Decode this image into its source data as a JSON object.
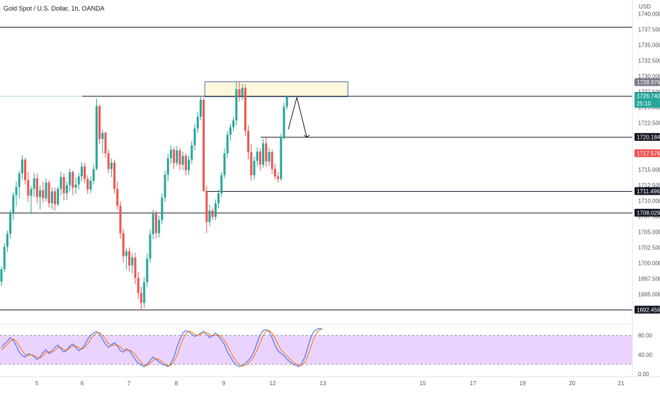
{
  "header": {
    "title": "Gold Spot / U.S. Dollar, 1h, OANDA",
    "currency": "USD"
  },
  "chart_data": {
    "type": "candlestick",
    "title": "Gold Spot / U.S. Dollar, 1h, OANDA",
    "price_axis": {
      "unit": "USD",
      "range": [
        1690.5,
        1742.0
      ],
      "ticks": [
        "1740.000",
        "1737.500",
        "1735.000",
        "1732.500",
        "1730.000",
        "1727.500",
        "1725.000",
        "1722.500",
        "1720.000",
        "1717.500",
        "1715.000",
        "1712.500",
        "1710.000",
        "1707.500",
        "1705.000",
        "1702.500",
        "1700.000",
        "1697.500",
        "1695.000",
        "1692.500"
      ]
    },
    "time_axis": {
      "ticks": [
        "5",
        "6",
        "7",
        "8",
        "9",
        "12",
        "13",
        "15",
        "17",
        "19",
        "20",
        "21"
      ]
    },
    "horizontal_levels": [
      "1737.867",
      "1726.766",
      "1720.184",
      "1711.496",
      "1708.029",
      "1692.456"
    ],
    "price_badges": [
      {
        "label": "1728.976",
        "color": "#787b86"
      },
      {
        "label": "1726.766",
        "color": "#131722"
      },
      {
        "label": "1726.740",
        "sub": "25:10",
        "color": "#26a69a"
      },
      {
        "label": "1720.184",
        "color": "#131722"
      },
      {
        "label": "1717.576",
        "color": "#ef5350"
      },
      {
        "label": "1711.496",
        "color": "#131722"
      },
      {
        "label": "1708.029",
        "color": "#131722"
      },
      {
        "label": "1692.456",
        "color": "#131722"
      }
    ],
    "supply_zone": {
      "from_time": "8.6",
      "to_time": "13.5",
      "low": 1726.7,
      "high": 1729.1,
      "color": "#fff8dc",
      "border": "#4a6fa5"
    },
    "projection": {
      "points": [
        {
          "t": 12.4,
          "p": 1721.5
        },
        {
          "t": 12.55,
          "p": 1726.6
        },
        {
          "t": 12.8,
          "p": 1720.2
        }
      ]
    },
    "candles_ohlc": [
      [
        1697,
        1699.5,
        1696.3,
        1699
      ],
      [
        1699,
        1703.2,
        1698.5,
        1702.6
      ],
      [
        1702.6,
        1705.2,
        1701.8,
        1704.7
      ],
      [
        1704.7,
        1708.5,
        1703.9,
        1707.9
      ],
      [
        1707.9,
        1711.4,
        1706.9,
        1710.9
      ],
      [
        1710.9,
        1713.1,
        1709.1,
        1712.2
      ],
      [
        1712.2,
        1714.8,
        1710.4,
        1714.4
      ],
      [
        1714.4,
        1717.3,
        1713.4,
        1716.6
      ],
      [
        1716.6,
        1716.9,
        1712.6,
        1713.3
      ],
      [
        1713.3,
        1714.6,
        1709.8,
        1710.8
      ],
      [
        1710.8,
        1712.4,
        1708.1,
        1711.9
      ],
      [
        1711.9,
        1714.4,
        1710.6,
        1713.6
      ],
      [
        1713.6,
        1714.4,
        1709.6,
        1710.6
      ],
      [
        1710.6,
        1712.5,
        1708.6,
        1711.7
      ],
      [
        1711.7,
        1713.1,
        1709.7,
        1710.4
      ],
      [
        1710.4,
        1713.6,
        1709.9,
        1712.9
      ],
      [
        1712.9,
        1713.3,
        1708.9,
        1709.6
      ],
      [
        1709.6,
        1712.2,
        1708.6,
        1711.5
      ],
      [
        1711.5,
        1712.1,
        1708.4,
        1709.4
      ],
      [
        1709.4,
        1712.3,
        1709.1,
        1711.9
      ],
      [
        1711.9,
        1714.7,
        1710.9,
        1713.8
      ],
      [
        1713.8,
        1714.4,
        1710.1,
        1711.2
      ],
      [
        1711.2,
        1713.1,
        1710.1,
        1712.5
      ],
      [
        1712.5,
        1715.1,
        1711.5,
        1714.6
      ],
      [
        1714.6,
        1714.9,
        1710.9,
        1712.1
      ],
      [
        1712.1,
        1713.7,
        1711.1,
        1712.6
      ],
      [
        1712.6,
        1714.5,
        1711.8,
        1713.9
      ],
      [
        1713.9,
        1716.2,
        1713.1,
        1715.5
      ],
      [
        1715.5,
        1716.1,
        1712.8,
        1713.5
      ],
      [
        1713.5,
        1714.1,
        1711.1,
        1711.8
      ],
      [
        1711.8,
        1713.9,
        1711.2,
        1713.2
      ],
      [
        1713.2,
        1715.9,
        1712.6,
        1715.1
      ],
      [
        1715.1,
        1726.4,
        1714.9,
        1725.2
      ],
      [
        1725.2,
        1725.4,
        1719.1,
        1719.9
      ],
      [
        1719.9,
        1721.4,
        1717.6,
        1720.9
      ],
      [
        1720.9,
        1721.1,
        1716.9,
        1717.6
      ],
      [
        1717.6,
        1718.3,
        1714.4,
        1715.1
      ],
      [
        1715.1,
        1716.8,
        1713.8,
        1716.1
      ],
      [
        1716.1,
        1716.6,
        1711.2,
        1711.9
      ],
      [
        1711.9,
        1713.1,
        1708.5,
        1709.2
      ],
      [
        1709.2,
        1709.9,
        1703.9,
        1704.8
      ],
      [
        1704.8,
        1705.5,
        1700.1,
        1701.1
      ],
      [
        1701.1,
        1702.4,
        1698.9,
        1701.9
      ],
      [
        1701.9,
        1702.5,
        1698.6,
        1699.6
      ],
      [
        1699.6,
        1701.6,
        1698.3,
        1700.9
      ],
      [
        1700.9,
        1701.7,
        1696.6,
        1697.6
      ],
      [
        1697.6,
        1698.6,
        1694.2,
        1695.2
      ],
      [
        1695.2,
        1696.2,
        1692.4,
        1693.6
      ],
      [
        1693.6,
        1697.8,
        1692.8,
        1696.9
      ],
      [
        1696.9,
        1701.6,
        1696.1,
        1700.7
      ],
      [
        1700.7,
        1705.4,
        1700.1,
        1704.6
      ],
      [
        1704.6,
        1708.6,
        1703.8,
        1707.9
      ],
      [
        1707.9,
        1708.4,
        1703.9,
        1704.8
      ],
      [
        1704.8,
        1707.6,
        1704.1,
        1706.9
      ],
      [
        1706.9,
        1711.2,
        1706.2,
        1710.5
      ],
      [
        1710.5,
        1714.8,
        1709.8,
        1714.2
      ],
      [
        1714.2,
        1717.6,
        1713.1,
        1716.8
      ],
      [
        1716.8,
        1718.9,
        1715.9,
        1718.2
      ],
      [
        1718.2,
        1718.6,
        1715.1,
        1716.1
      ],
      [
        1716.1,
        1718.8,
        1715.6,
        1718.1
      ],
      [
        1718.1,
        1718.5,
        1714.9,
        1715.8
      ],
      [
        1715.8,
        1717.9,
        1714.9,
        1717.2
      ],
      [
        1717.2,
        1717.6,
        1714.1,
        1714.9
      ],
      [
        1714.9,
        1717.3,
        1714.1,
        1716.6
      ],
      [
        1716.6,
        1719.6,
        1715.9,
        1718.9
      ],
      [
        1718.9,
        1722.3,
        1718.1,
        1721.6
      ],
      [
        1721.6,
        1724.3,
        1720.9,
        1723.5
      ],
      [
        1723.5,
        1726.8,
        1722.9,
        1726.2
      ],
      [
        1726.2,
        1726.5,
        1714.6,
        1711.5
      ],
      [
        1711.5,
        1712.4,
        1704.8,
        1706.6
      ],
      [
        1706.6,
        1709.4,
        1705.9,
        1708.4
      ],
      [
        1708.4,
        1708.9,
        1706.9,
        1707.4
      ],
      [
        1707.4,
        1710.2,
        1706.9,
        1709.6
      ],
      [
        1709.6,
        1711.8,
        1708.8,
        1711.2
      ],
      [
        1711.2,
        1714.6,
        1710.6,
        1714.1
      ],
      [
        1714.1,
        1718.4,
        1713.6,
        1717.6
      ],
      [
        1717.6,
        1721.2,
        1716.9,
        1720.6
      ],
      [
        1720.6,
        1722.3,
        1719.6,
        1721.8
      ],
      [
        1721.8,
        1723.5,
        1721.1,
        1722.9
      ],
      [
        1722.9,
        1729.1,
        1722.1,
        1727.9
      ],
      [
        1727.9,
        1729.2,
        1725.9,
        1726.8
      ],
      [
        1726.8,
        1728.8,
        1726.1,
        1728.1
      ],
      [
        1728.1,
        1728.7,
        1720.4,
        1721.2
      ],
      [
        1721.2,
        1722.1,
        1716.6,
        1717.8
      ],
      [
        1717.8,
        1719.1,
        1713.2,
        1714.1
      ],
      [
        1714.1,
        1717.1,
        1713.4,
        1716.4
      ],
      [
        1716.4,
        1718.6,
        1715.6,
        1717.9
      ],
      [
        1717.9,
        1718.4,
        1714.9,
        1715.8
      ],
      [
        1715.8,
        1719.9,
        1715.3,
        1719.2
      ],
      [
        1719.2,
        1720.1,
        1715.4,
        1716.3
      ],
      [
        1716.3,
        1718.5,
        1715.6,
        1717.8
      ],
      [
        1717.8,
        1718.2,
        1714.3,
        1715.1
      ],
      [
        1715.1,
        1715.9,
        1713.4,
        1713.9
      ],
      [
        1713.9,
        1714.6,
        1712.9,
        1713.5
      ],
      [
        1713.5,
        1720.8,
        1713.2,
        1720.2
      ],
      [
        1720.2,
        1725.8,
        1719.8,
        1725.1
      ],
      [
        1725.1,
        1726.9,
        1724.6,
        1726.7
      ]
    ],
    "stochastic_rsi": {
      "y_axis_ticks": [
        "80.00",
        "40.00",
        "0.00"
      ],
      "band": [
        20,
        80
      ],
      "k_line": [
        55,
        62,
        68,
        75,
        70,
        58,
        45,
        38,
        35,
        42,
        40,
        36,
        30,
        35,
        45,
        50,
        42,
        48,
        55,
        60,
        52,
        45,
        50,
        58,
        62,
        55,
        48,
        52,
        60,
        72,
        80,
        85,
        88,
        82,
        72,
        62,
        55,
        60,
        65,
        58,
        48,
        45,
        52,
        48,
        40,
        30,
        22,
        18,
        15,
        20,
        28,
        35,
        30,
        25,
        20,
        18,
        15,
        22,
        35,
        55,
        72,
        85,
        90,
        88,
        82,
        78,
        80,
        85,
        88,
        82,
        75,
        80,
        85,
        78,
        70,
        60,
        45,
        35,
        25,
        18,
        15,
        18,
        22,
        28,
        35,
        48,
        65,
        82,
        90,
        92,
        88,
        75,
        60,
        48,
        42,
        38,
        30,
        25,
        20,
        18,
        15,
        22,
        35,
        55,
        75,
        88,
        92,
        95,
        92
      ]
    },
    "stochastic_rsi_d": [
      50,
      55,
      62,
      68,
      72,
      68,
      58,
      48,
      40,
      38,
      40,
      38,
      35,
      33,
      38,
      45,
      46,
      45,
      48,
      55,
      55,
      50,
      49,
      54,
      58,
      58,
      54,
      51,
      55,
      62,
      72,
      80,
      85,
      86,
      80,
      72,
      63,
      59,
      60,
      60,
      56,
      50,
      48,
      50,
      46,
      40,
      31,
      23,
      18,
      17,
      22,
      28,
      32,
      30,
      25,
      20,
      17,
      18,
      25,
      38,
      55,
      72,
      83,
      88,
      87,
      82,
      80,
      82,
      85,
      86,
      82,
      79,
      80,
      81,
      77,
      69,
      58,
      46,
      35,
      26,
      19,
      16,
      18,
      22,
      28,
      37,
      50,
      65,
      80,
      88,
      90,
      85,
      74,
      61,
      50,
      43,
      37,
      31,
      25,
      21,
      17,
      18,
      24,
      38,
      55,
      73,
      85,
      92,
      93
    ]
  }
}
